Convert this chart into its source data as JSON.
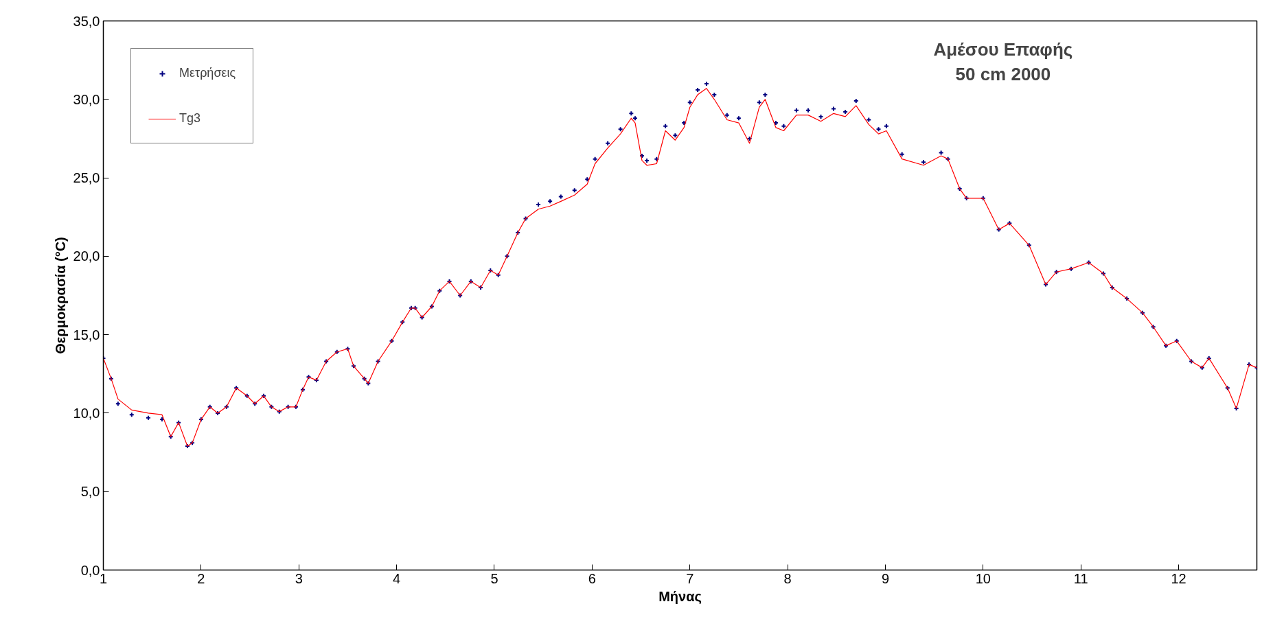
{
  "chart_data": {
    "type": "scatter",
    "title": "Αμέσου Επαφής",
    "subtitle": "50 cm 2000",
    "xlabel": "Μήνας",
    "ylabel": "Θερμοκρασία (°C)",
    "x": [
      1.0,
      1.08,
      1.15,
      1.29,
      1.46,
      1.6,
      1.69,
      1.77,
      1.86,
      1.91,
      2.0,
      2.09,
      2.17,
      2.26,
      2.36,
      2.47,
      2.55,
      2.64,
      2.72,
      2.8,
      2.89,
      2.97,
      3.04,
      3.1,
      3.18,
      3.28,
      3.39,
      3.5,
      3.56,
      3.67,
      3.71,
      3.81,
      3.95,
      4.06,
      4.15,
      4.19,
      4.26,
      4.36,
      4.44,
      4.54,
      4.65,
      4.76,
      4.86,
      4.96,
      5.04,
      5.13,
      5.24,
      5.32,
      5.45,
      5.57,
      5.68,
      5.82,
      5.95,
      6.03,
      6.16,
      6.29,
      6.4,
      6.44,
      6.51,
      6.56,
      6.66,
      6.75,
      6.85,
      6.94,
      7.0,
      7.08,
      7.17,
      7.25,
      7.38,
      7.5,
      7.61,
      7.71,
      7.77,
      7.88,
      7.96,
      8.09,
      8.21,
      8.34,
      8.47,
      8.59,
      8.7,
      8.83,
      8.93,
      9.01,
      9.17,
      9.39,
      9.57,
      9.64,
      9.76,
      9.83,
      10.0,
      10.16,
      10.27,
      10.47,
      10.64,
      10.75,
      10.9,
      11.08,
      11.23,
      11.32,
      11.47,
      11.63,
      11.74,
      11.87,
      11.98,
      12.13,
      12.24,
      12.31,
      12.5,
      12.59,
      12.72,
      12.8
    ],
    "series": [
      {
        "name": "Μετρήσεις",
        "marker": "cross",
        "color": "#000080",
        "values": [
          13.5,
          12.2,
          10.6,
          9.9,
          9.7,
          9.6,
          8.5,
          9.4,
          7.9,
          8.1,
          9.6,
          10.4,
          10.0,
          10.4,
          11.6,
          11.1,
          10.6,
          11.1,
          10.4,
          10.1,
          10.4,
          10.4,
          11.5,
          12.3,
          12.1,
          13.3,
          13.9,
          14.1,
          13.0,
          12.2,
          11.9,
          13.3,
          14.6,
          15.8,
          16.7,
          16.7,
          16.1,
          16.8,
          17.8,
          18.4,
          17.5,
          18.4,
          18.0,
          19.1,
          18.8,
          20.0,
          21.5,
          22.4,
          23.3,
          23.5,
          23.8,
          24.2,
          24.9,
          26.2,
          27.2,
          28.1,
          29.1,
          28.8,
          26.4,
          26.1,
          26.2,
          28.3,
          27.7,
          28.5,
          29.8,
          30.6,
          31.0,
          30.3,
          29.0,
          28.8,
          27.5,
          29.8,
          30.3,
          28.5,
          28.3,
          29.3,
          29.3,
          28.9,
          29.4,
          29.2,
          29.9,
          28.7,
          28.1,
          28.3,
          26.5,
          26.0,
          26.6,
          26.2,
          24.3,
          23.7,
          23.7,
          21.7,
          22.1,
          20.7,
          18.2,
          19.0,
          19.2,
          19.6,
          18.9,
          18.0,
          17.3,
          16.4,
          15.5,
          14.3,
          14.6,
          13.3,
          12.9,
          13.5,
          11.6,
          10.3,
          13.1,
          12.9
        ]
      },
      {
        "name": "Tg3",
        "type": "line",
        "line_style": "solid",
        "color": "#ff0000",
        "values": [
          13.5,
          12.2,
          10.9,
          10.2,
          10.0,
          9.9,
          8.5,
          9.4,
          7.9,
          8.1,
          9.6,
          10.4,
          10.0,
          10.4,
          11.6,
          11.1,
          10.6,
          11.1,
          10.4,
          10.1,
          10.4,
          10.4,
          11.5,
          12.3,
          12.1,
          13.3,
          13.9,
          14.1,
          13.0,
          12.2,
          11.9,
          13.3,
          14.6,
          15.8,
          16.7,
          16.7,
          16.1,
          16.8,
          17.8,
          18.4,
          17.5,
          18.4,
          18.0,
          19.1,
          18.8,
          20.0,
          21.5,
          22.4,
          23.0,
          23.2,
          23.5,
          23.9,
          24.6,
          25.9,
          26.9,
          27.8,
          28.8,
          28.5,
          26.1,
          25.8,
          25.9,
          28.0,
          27.4,
          28.2,
          29.5,
          30.3,
          30.7,
          30.0,
          28.7,
          28.5,
          27.2,
          29.5,
          30.0,
          28.2,
          28.0,
          29.0,
          29.0,
          28.6,
          29.1,
          28.9,
          29.6,
          28.4,
          27.8,
          28.0,
          26.2,
          25.8,
          26.4,
          26.2,
          24.3,
          23.7,
          23.7,
          21.7,
          22.1,
          20.7,
          18.2,
          19.0,
          19.2,
          19.6,
          18.9,
          18.0,
          17.3,
          16.4,
          15.5,
          14.3,
          14.6,
          13.3,
          12.9,
          13.5,
          11.6,
          10.3,
          13.1,
          12.9
        ]
      }
    ],
    "xlim": [
      1,
      12.8
    ],
    "xticks": [
      1,
      2,
      3,
      4,
      5,
      6,
      7,
      8,
      9,
      10,
      11,
      12
    ],
    "ylim": [
      0,
      35
    ],
    "yticks": [
      {
        "value": 0,
        "label": "0,0"
      },
      {
        "value": 5,
        "label": "5,0"
      },
      {
        "value": 10,
        "label": "10,0"
      },
      {
        "value": 15,
        "label": "15,0"
      },
      {
        "value": 20,
        "label": "20,0"
      },
      {
        "value": 25,
        "label": "25,0"
      },
      {
        "value": 30,
        "label": "30,0"
      },
      {
        "value": 35,
        "label": "35,0"
      }
    ],
    "grid": false,
    "legend": "top left"
  }
}
